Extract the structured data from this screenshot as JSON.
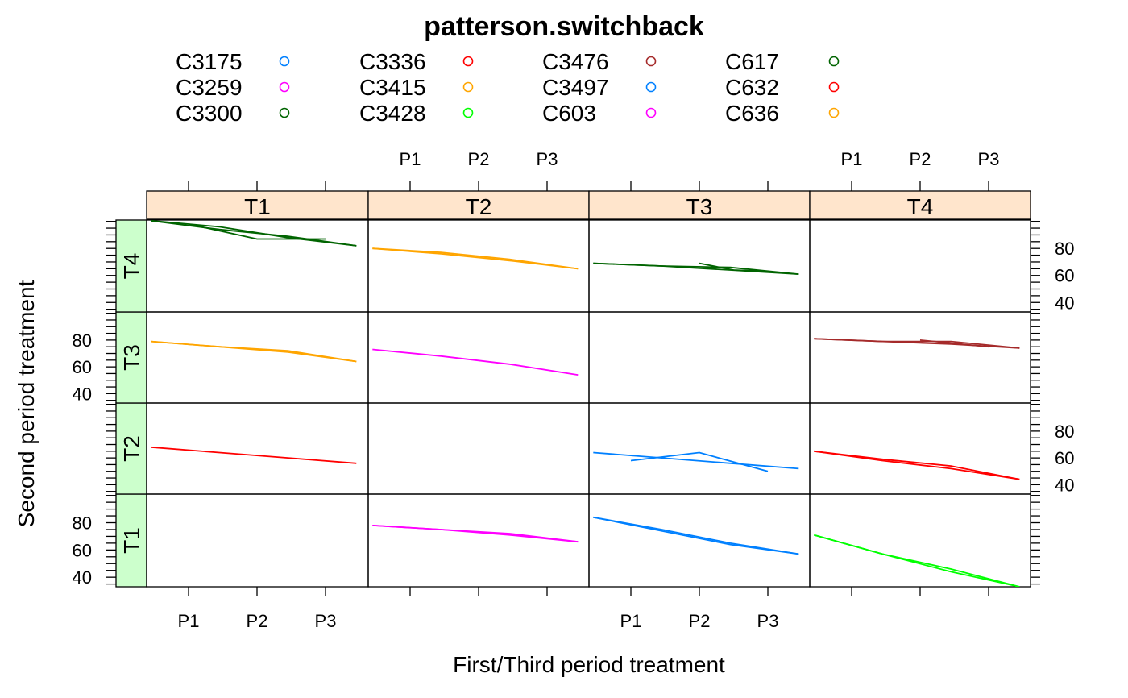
{
  "chart_data": {
    "type": "line",
    "title": "patterson.switchback",
    "xlabel": "First/Third period treatment",
    "ylabel": "Second period treatment",
    "x_categories": [
      "P1",
      "P2",
      "P3"
    ],
    "y_ticks": [
      40,
      60,
      80
    ],
    "ylim": [
      33,
      101
    ],
    "column_strips": [
      "T1",
      "T2",
      "T3",
      "T4"
    ],
    "row_strips": [
      "T1",
      "T2",
      "T3",
      "T4"
    ],
    "legend": [
      {
        "label": "C3175",
        "color": "#0080ff"
      },
      {
        "label": "C3259",
        "color": "#ff00ff"
      },
      {
        "label": "C3300",
        "color": "#006400"
      },
      {
        "label": "C3336",
        "color": "#ff0000"
      },
      {
        "label": "C3415",
        "color": "#ffa500"
      },
      {
        "label": "C3428",
        "color": "#00ff00"
      },
      {
        "label": "C3476",
        "color": "#a52a2a"
      },
      {
        "label": "C3497",
        "color": "#0080ff"
      },
      {
        "label": "C603",
        "color": "#ff00ff"
      },
      {
        "label": "C617",
        "color": "#006400"
      },
      {
        "label": "C632",
        "color": "#ff0000"
      },
      {
        "label": "C636",
        "color": "#ffa500"
      }
    ],
    "panels": [
      {
        "col": 0,
        "row": 3,
        "series": [
          {
            "color": "#006400",
            "x": [
              0.45,
              1.45,
              2.45,
              3.45
            ],
            "y": [
              100.5,
              96,
              88,
              82
            ]
          },
          {
            "color": "#006400",
            "x": [
              0.45,
              1.45,
              2.45,
              3.45
            ],
            "y": [
              100.5,
              94,
              89,
              82
            ]
          },
          {
            "color": "#006400",
            "x": [
              1.0,
              2.0,
              3.0
            ],
            "y": [
              98,
              87,
              87
            ]
          }
        ]
      },
      {
        "col": 1,
        "row": 3,
        "series": [
          {
            "color": "#ffa500",
            "x": [
              0.45,
              1.45,
              2.45,
              3.45
            ],
            "y": [
              80,
              77,
              72,
              65
            ]
          },
          {
            "color": "#ffa500",
            "x": [
              0.45,
              1.45,
              2.45,
              3.45
            ],
            "y": [
              80,
              76,
              71,
              65
            ]
          }
        ]
      },
      {
        "col": 2,
        "row": 3,
        "series": [
          {
            "color": "#006400",
            "x": [
              0.45,
              1.45,
              2.45,
              3.45
            ],
            "y": [
              69,
              67,
              64,
              61
            ]
          },
          {
            "color": "#006400",
            "x": [
              0.45,
              1.45,
              2.45,
              3.45
            ],
            "y": [
              69,
              67,
              66,
              61
            ]
          },
          {
            "color": "#006400",
            "x": [
              2.0,
              2.5,
              3.0
            ],
            "y": [
              69,
              64,
              63
            ]
          }
        ]
      },
      {
        "col": 0,
        "row": 2,
        "series": [
          {
            "color": "#ffa500",
            "x": [
              0.45,
              1.45,
              2.45,
              3.45
            ],
            "y": [
              79,
              75,
              71,
              64
            ]
          },
          {
            "color": "#ffa500",
            "x": [
              0.45,
              1.45,
              2.45,
              3.45
            ],
            "y": [
              79,
              75,
              72,
              64
            ]
          }
        ]
      },
      {
        "col": 1,
        "row": 2,
        "series": [
          {
            "color": "#ff00ff",
            "x": [
              0.45,
              1.45,
              2.45,
              3.45
            ],
            "y": [
              73,
              68,
              62,
              54
            ]
          }
        ]
      },
      {
        "col": 3,
        "row": 2,
        "series": [
          {
            "color": "#a52a2a",
            "x": [
              0.45,
              1.45,
              2.45,
              3.45
            ],
            "y": [
              81,
              79,
              79,
              74
            ]
          },
          {
            "color": "#a52a2a",
            "x": [
              0.45,
              1.45,
              2.45,
              3.45
            ],
            "y": [
              81,
              79,
              77,
              74
            ]
          },
          {
            "color": "#a52a2a",
            "x": [
              2.0,
              3.0
            ],
            "y": [
              80,
              75
            ]
          }
        ]
      },
      {
        "col": 0,
        "row": 1,
        "series": [
          {
            "color": "#ff0000",
            "x": [
              0.45,
              1.45,
              2.45,
              3.45
            ],
            "y": [
              68,
              64,
              60,
              56
            ]
          }
        ]
      },
      {
        "col": 2,
        "row": 1,
        "series": [
          {
            "color": "#0080ff",
            "x": [
              0.45,
              3.45
            ],
            "y": [
              64,
              52
            ]
          },
          {
            "color": "#0080ff",
            "x": [
              1.0,
              2.0,
              3.0
            ],
            "y": [
              58,
              64,
              50
            ]
          }
        ]
      },
      {
        "col": 3,
        "row": 1,
        "series": [
          {
            "color": "#ff0000",
            "x": [
              0.45,
              1.45,
              2.45,
              3.45
            ],
            "y": [
              65,
              58,
              52,
              44
            ]
          },
          {
            "color": "#ff0000",
            "x": [
              0.45,
              1.45,
              2.45,
              3.45
            ],
            "y": [
              65,
              59,
              54,
              44
            ]
          }
        ]
      },
      {
        "col": 1,
        "row": 0,
        "series": [
          {
            "color": "#ff00ff",
            "x": [
              0.45,
              1.45,
              2.45,
              3.45
            ],
            "y": [
              78,
              75,
              71,
              66
            ]
          },
          {
            "color": "#ff00ff",
            "x": [
              0.45,
              1.45,
              2.45,
              3.45
            ],
            "y": [
              78,
              75,
              72,
              66
            ]
          }
        ]
      },
      {
        "col": 2,
        "row": 0,
        "series": [
          {
            "color": "#0080ff",
            "x": [
              0.45,
              1.45,
              2.45,
              3.45
            ],
            "y": [
              84,
              74,
              64,
              57
            ]
          },
          {
            "color": "#0080ff",
            "x": [
              0.45,
              1.45,
              2.45,
              3.45
            ],
            "y": [
              84,
              75,
              65,
              57
            ]
          }
        ]
      },
      {
        "col": 3,
        "row": 0,
        "series": [
          {
            "color": "#00ff00",
            "x": [
              0.45,
              1.45,
              2.45,
              3.45
            ],
            "y": [
              71,
              57,
              44,
              33
            ]
          },
          {
            "color": "#00ff00",
            "x": [
              0.45,
              1.45,
              2.45,
              3.45
            ],
            "y": [
              71,
              57,
              46,
              33
            ]
          }
        ]
      }
    ]
  }
}
